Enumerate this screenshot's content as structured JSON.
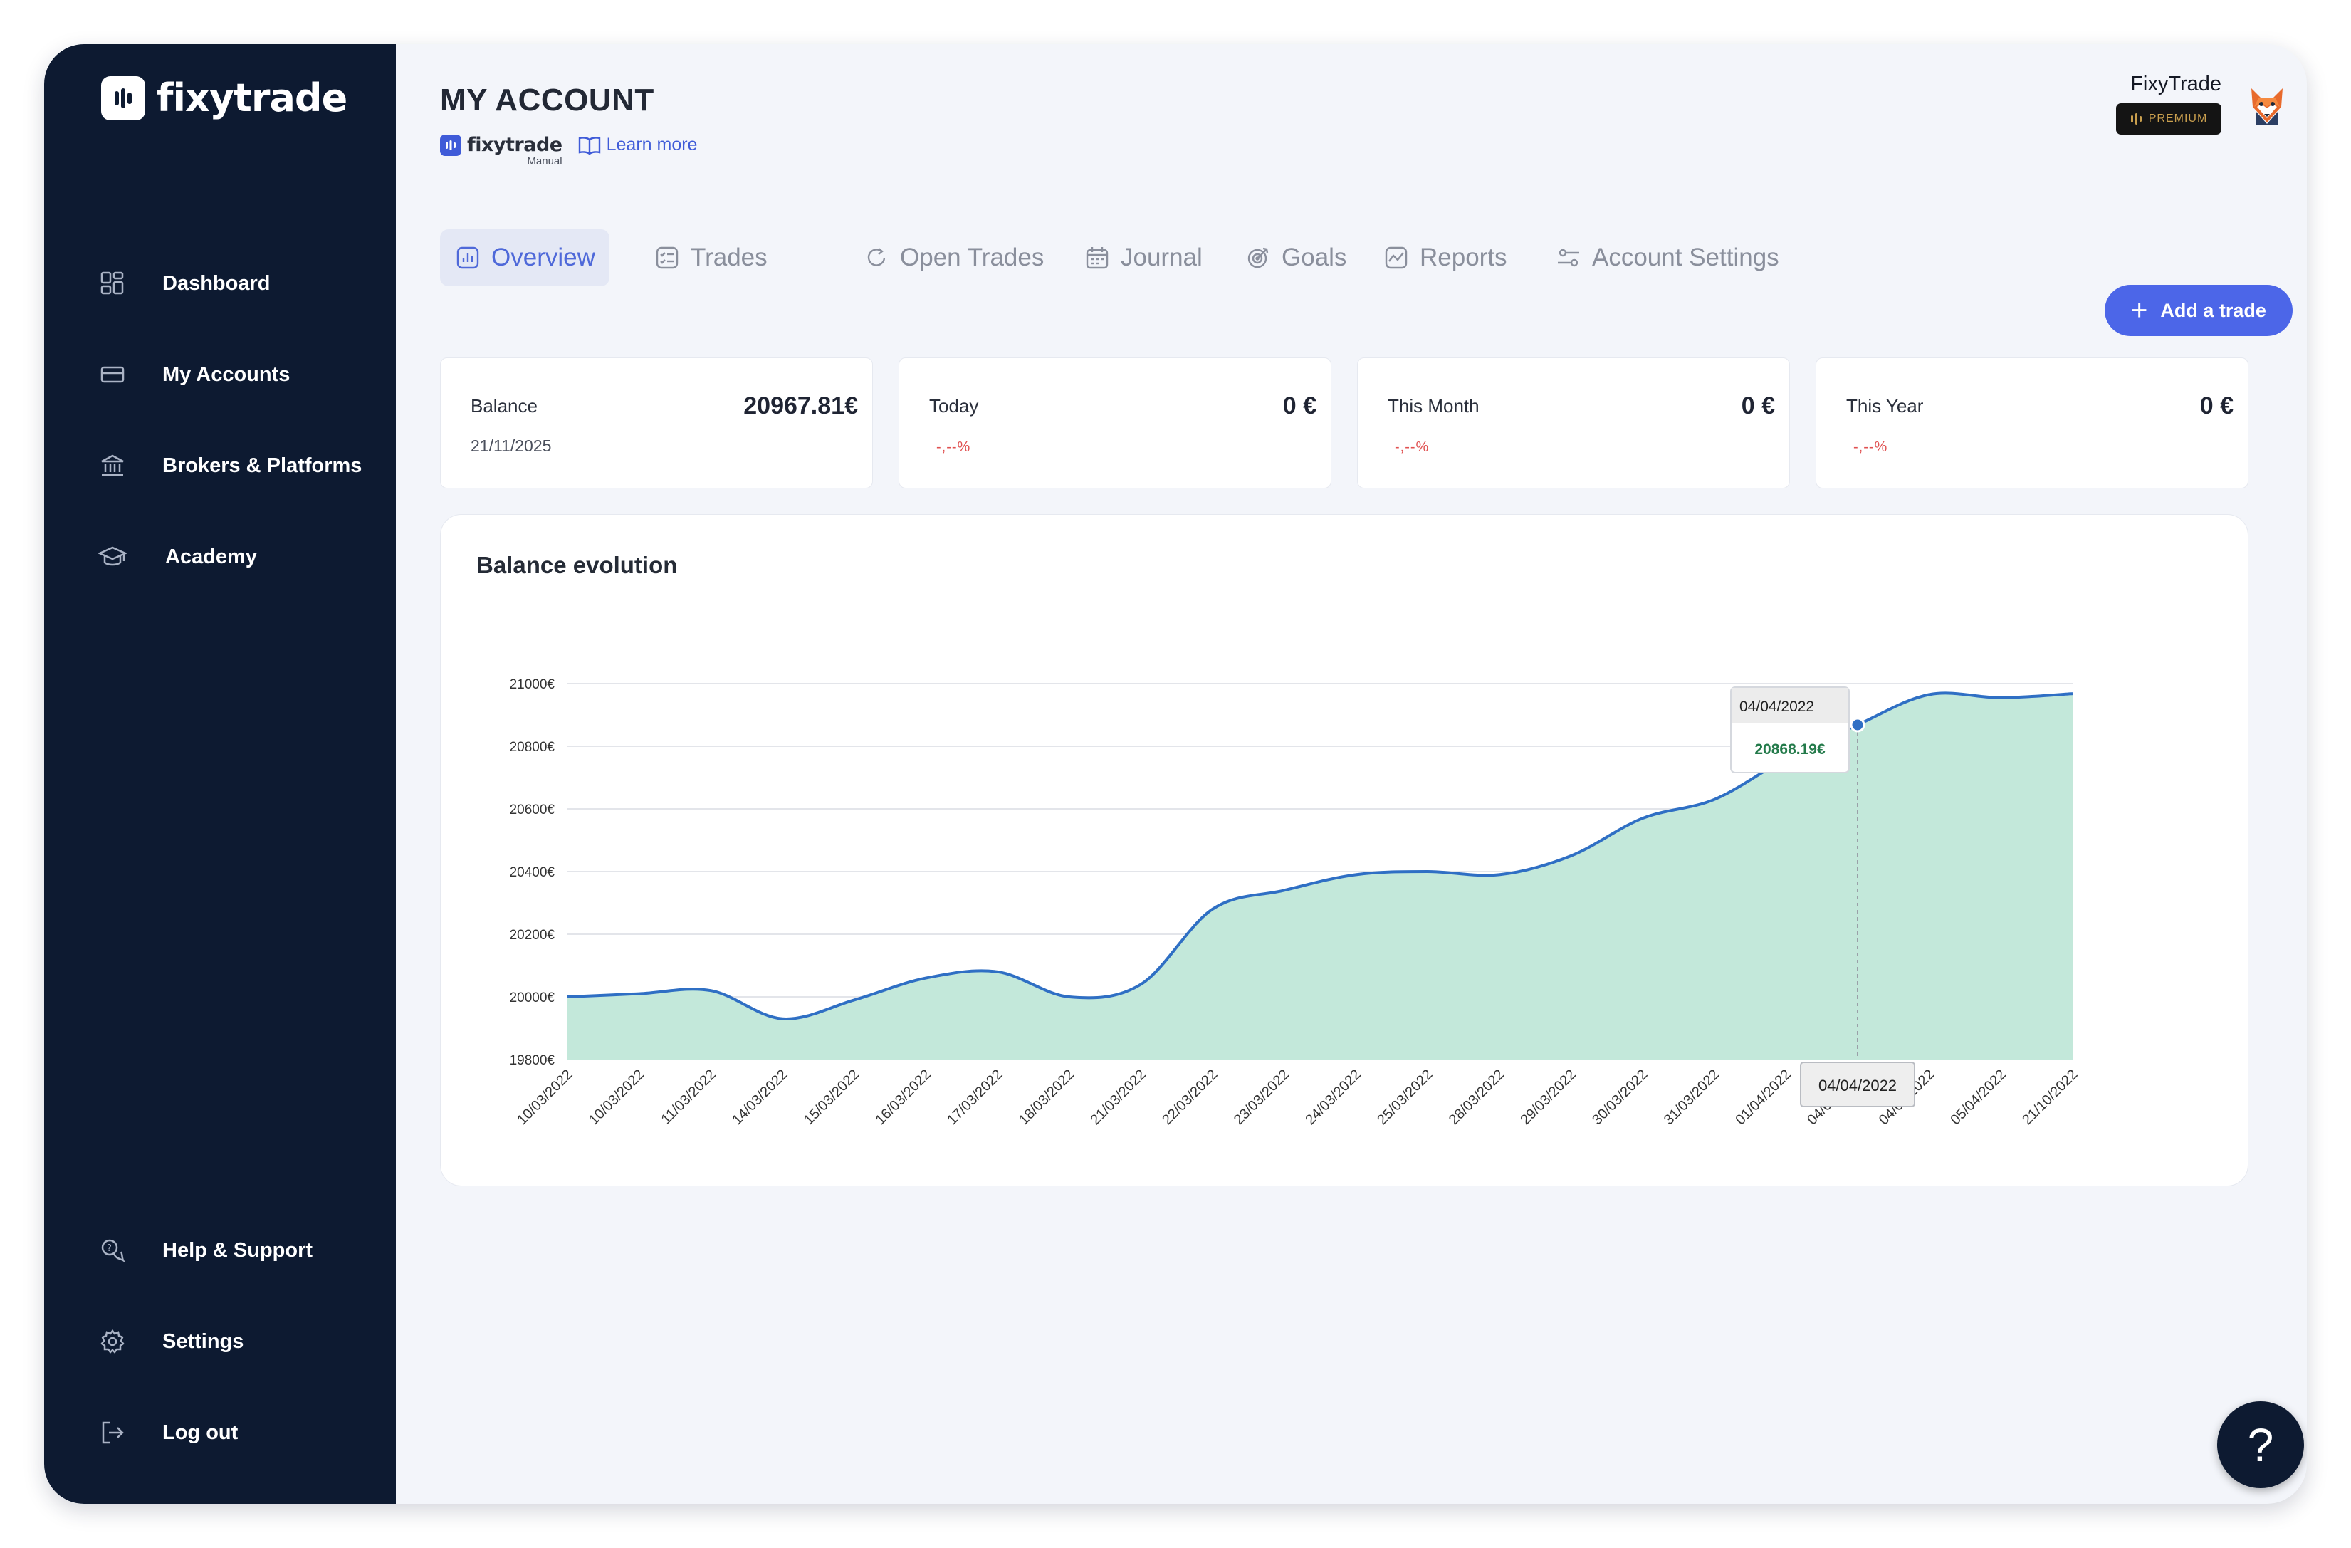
{
  "brand": {
    "name": "fixytrade"
  },
  "sidebar": {
    "items": [
      {
        "label": "Dashboard",
        "icon": "grid-icon"
      },
      {
        "label": "My Accounts",
        "icon": "card-icon"
      },
      {
        "label": "Brokers & Platforms",
        "icon": "bank-icon"
      },
      {
        "label": "Academy",
        "icon": "graduation-cap-icon"
      }
    ],
    "bottom_items": [
      {
        "label": "Help & Support",
        "icon": "help-chat-icon"
      },
      {
        "label": "Settings",
        "icon": "gear-icon"
      },
      {
        "label": "Log out",
        "icon": "logout-icon"
      }
    ]
  },
  "header": {
    "title": "MY ACCOUNT",
    "account_brand": "fixytrade",
    "account_type": "Manual",
    "learn_more": "Learn more"
  },
  "user": {
    "name": "FixyTrade",
    "badge": "PREMIUM"
  },
  "tabs": [
    {
      "label": "Overview",
      "icon": "chart-icon",
      "active": true
    },
    {
      "label": "Trades",
      "icon": "checklist-icon"
    },
    {
      "label": "Open Trades",
      "icon": "refresh-icon"
    },
    {
      "label": "Journal",
      "icon": "calendar-icon"
    },
    {
      "label": "Goals",
      "icon": "target-icon"
    },
    {
      "label": "Reports",
      "icon": "report-icon"
    },
    {
      "label": "Account Settings",
      "icon": "sliders-icon"
    }
  ],
  "actions": {
    "add_trade": "Add a trade"
  },
  "stats": {
    "balance": {
      "label": "Balance",
      "value": "20967.81€",
      "date": "21/11/2025"
    },
    "today": {
      "label": "Today",
      "value": "0 €",
      "change": "-,--%"
    },
    "month": {
      "label": "This Month",
      "value": "0 €",
      "change": "-,--%"
    },
    "year": {
      "label": "This Year",
      "value": "0 €",
      "change": "-,--%"
    }
  },
  "colors": {
    "accent": "#4c66e8",
    "sidebar": "#0d1a31",
    "area_fill": "#c3e8da",
    "line": "#2f6fc4",
    "negative": "#e05050",
    "tooltip_value": "#237a4a"
  },
  "help": {
    "label": "?"
  },
  "chart_data": {
    "type": "area",
    "title": "Balance evolution",
    "x": [
      "10/03/2022",
      "10/03/2022",
      "11/03/2022",
      "14/03/2022",
      "15/03/2022",
      "16/03/2022",
      "17/03/2022",
      "18/03/2022",
      "21/03/2022",
      "22/03/2022",
      "23/03/2022",
      "24/03/2022",
      "25/03/2022",
      "28/03/2022",
      "29/03/2022",
      "30/03/2022",
      "31/03/2022",
      "01/04/2022",
      "04/04/2022",
      "04/04/2022",
      "05/04/2022",
      "21/10/2022"
    ],
    "y": [
      20000,
      20010,
      20020,
      19930,
      19990,
      20060,
      20080,
      20000,
      20040,
      20280,
      20340,
      20390,
      20400,
      20390,
      20450,
      20570,
      20630,
      20760,
      20868.19,
      20965,
      20955,
      20967.81
    ],
    "ylim": [
      19800,
      21000
    ],
    "yticks": [
      "21000€",
      "20800€",
      "20600€",
      "20400€",
      "20200€",
      "20000€",
      "19800€"
    ],
    "ytick_values": [
      21000,
      20800,
      20600,
      20400,
      20200,
      20000,
      19800
    ],
    "grid": true,
    "tooltip": {
      "date": "04/04/2022",
      "value": "20868.19€",
      "index": 18
    },
    "x_hover_label": "04/04/2022"
  }
}
